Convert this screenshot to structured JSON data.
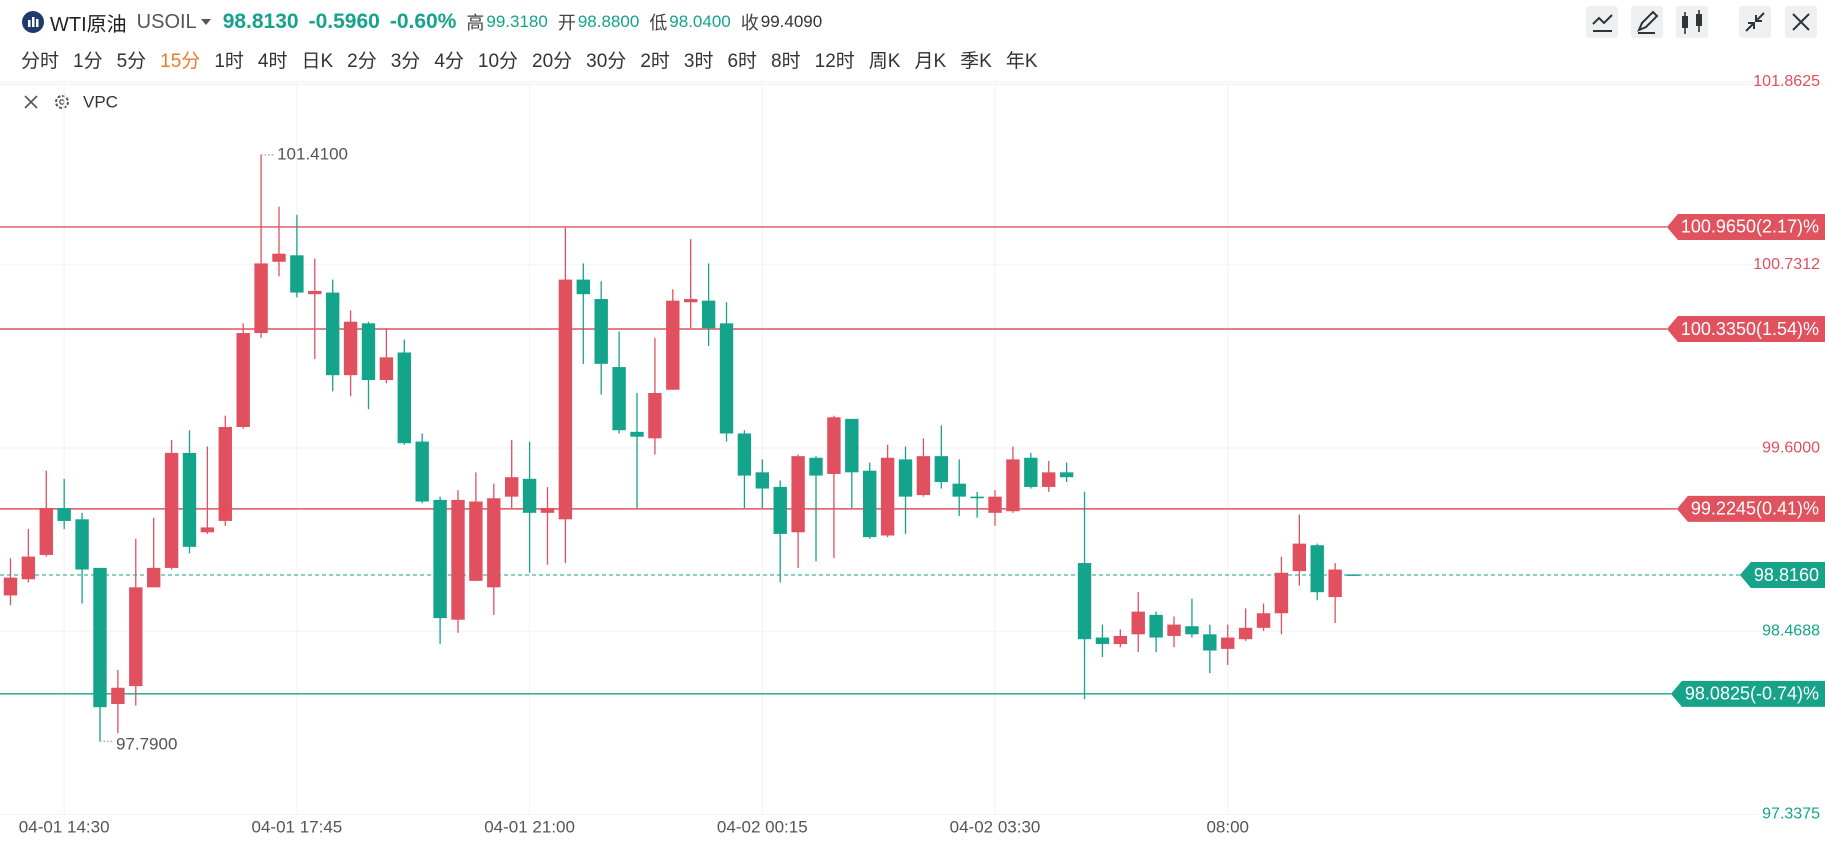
{
  "header": {
    "name": "WTI原油",
    "symbol": "USOIL",
    "price": "98.8130",
    "change": "-0.5960",
    "change_pct": "-0.60%",
    "high_label": "高",
    "high": "99.3180",
    "open_label": "开",
    "open": "98.8800",
    "low_label": "低",
    "low": "98.0400",
    "close_label": "收",
    "close": "99.4090"
  },
  "timeframes": [
    "分时",
    "1分",
    "5分",
    "15分",
    "1时",
    "4时",
    "日K",
    "2分",
    "3分",
    "4分",
    "10分",
    "20分",
    "30分",
    "2时",
    "3时",
    "6时",
    "8时",
    "12时",
    "周K",
    "月K",
    "季K",
    "年K"
  ],
  "active_timeframe": "15分",
  "indicator": "VPC",
  "chart_data": {
    "type": "candlestick",
    "categories": [
      null,
      null,
      null,
      "04-01 14:30",
      null,
      null,
      null,
      null,
      null,
      null,
      null,
      null,
      null,
      null,
      null,
      null,
      "04-01 17:45",
      null,
      null,
      null,
      null,
      null,
      null,
      null,
      null,
      null,
      null,
      null,
      null,
      "04-01 21:00",
      null,
      null,
      null,
      null,
      null,
      null,
      null,
      null,
      null,
      null,
      null,
      null,
      "04-02 00:15",
      null,
      null,
      null,
      null,
      null,
      null,
      null,
      null,
      null,
      null,
      null,
      null,
      "04-02 03:30",
      null,
      null,
      null,
      null,
      null,
      null,
      null,
      null,
      null,
      null,
      null,
      null,
      "08:00",
      null,
      null,
      null,
      null,
      null,
      null,
      null
    ],
    "open": [
      98.69,
      98.79,
      98.94,
      99.23,
      99.16,
      98.86,
      98.02,
      98.13,
      98.74,
      98.86,
      99.57,
      99.08,
      99.15,
      99.73,
      100.31,
      100.75,
      100.79,
      100.55,
      100.56,
      100.05,
      100.37,
      100.02,
      100.19,
      99.64,
      99.28,
      98.54,
      98.78,
      98.74,
      99.3,
      99.41,
      99.2,
      99.16,
      100.64,
      100.52,
      100.1,
      99.7,
      99.66,
      99.96,
      100.5,
      100.51,
      100.37,
      99.69,
      99.45,
      99.36,
      99.08,
      99.54,
      99.44,
      99.78,
      99.46,
      99.06,
      99.53,
      99.31,
      99.55,
      99.38,
      99.3,
      99.2,
      99.21,
      99.54,
      99.36,
      99.45,
      98.89,
      98.43,
      98.39,
      98.45,
      98.57,
      98.44,
      98.5,
      98.45,
      98.36,
      98.42,
      98.49,
      98.58,
      98.84,
      99.0,
      98.68,
      98.82
    ],
    "high": [
      98.92,
      99.1,
      99.46,
      99.41,
      99.2,
      98.86,
      98.23,
      99.04,
      99.17,
      99.65,
      99.71,
      99.61,
      99.8,
      100.37,
      101.41,
      101.09,
      101.04,
      100.77,
      100.64,
      100.45,
      100.38,
      100.34,
      100.27,
      99.69,
      99.3,
      99.34,
      99.45,
      99.38,
      99.65,
      99.64,
      99.36,
      100.96,
      100.74,
      100.63,
      100.32,
      99.94,
      100.28,
      100.58,
      100.89,
      100.74,
      100.5,
      99.71,
      99.53,
      99.4,
      99.56,
      99.55,
      99.8,
      99.78,
      99.51,
      99.62,
      99.61,
      99.66,
      99.74,
      99.53,
      99.33,
      99.34,
      99.61,
      99.57,
      99.52,
      99.51,
      99.33,
      98.51,
      98.48,
      98.71,
      98.59,
      98.56,
      98.67,
      98.51,
      98.51,
      98.61,
      98.64,
      98.93,
      99.19,
      99.01,
      98.89,
      98.82
    ],
    "low": [
      98.63,
      98.77,
      98.93,
      99.1,
      98.64,
      97.79,
      97.84,
      98.01,
      98.74,
      98.85,
      98.95,
      99.07,
      99.12,
      99.72,
      100.28,
      100.66,
      100.53,
      100.15,
      99.95,
      99.92,
      99.84,
      100.0,
      99.62,
      99.26,
      98.39,
      98.46,
      98.78,
      98.57,
      99.23,
      98.83,
      98.88,
      98.89,
      100.12,
      99.93,
      99.69,
      99.23,
      99.56,
      99.96,
      100.34,
      100.23,
      99.64,
      99.23,
      99.23,
      98.77,
      98.86,
      98.9,
      98.92,
      99.23,
      99.04,
      99.05,
      99.07,
      99.3,
      99.35,
      99.18,
      99.17,
      99.12,
      99.2,
      99.35,
      99.33,
      99.39,
      98.05,
      98.31,
      98.37,
      98.34,
      98.34,
      98.37,
      98.43,
      98.21,
      98.26,
      98.41,
      98.47,
      98.45,
      98.75,
      98.66,
      98.52,
      98.81
    ],
    "close": [
      98.8,
      98.93,
      99.23,
      99.15,
      98.85,
      98.0,
      98.12,
      98.74,
      98.86,
      99.57,
      98.99,
      99.11,
      99.73,
      100.31,
      100.74,
      100.8,
      100.56,
      100.57,
      100.05,
      100.38,
      100.02,
      100.16,
      99.63,
      99.27,
      98.55,
      99.28,
      99.27,
      99.29,
      99.42,
      99.2,
      99.23,
      100.64,
      100.55,
      100.12,
      99.71,
      99.67,
      99.94,
      100.51,
      100.52,
      100.34,
      99.69,
      99.43,
      99.35,
      99.07,
      99.55,
      99.43,
      99.79,
      99.45,
      99.05,
      99.54,
      99.3,
      99.55,
      99.39,
      99.3,
      99.29,
      99.3,
      99.53,
      99.36,
      99.45,
      99.42,
      98.42,
      98.39,
      98.44,
      98.59,
      98.43,
      98.51,
      98.45,
      98.35,
      98.43,
      98.49,
      98.58,
      98.83,
      99.01,
      98.71,
      98.85,
      98.816
    ],
    "up_color": "#e0505e",
    "down_color": "#14a38b",
    "ylim": [
      97.3375,
      101.8625
    ],
    "yticks": [
      97.3375,
      98.4688,
      {
        "value": 99.6,
        "label": "99.6000"
      },
      100.7312,
      101.8625
    ],
    "grid": true,
    "levels": [
      {
        "value": 100.965,
        "label": "100.9650(2.17)%",
        "color": "#e0525e"
      },
      {
        "value": 100.335,
        "label": "100.3350(1.54)%",
        "color": "#e0525e"
      },
      {
        "value": 99.2245,
        "label": "99.2245(0.41)%",
        "color": "#e0525e"
      },
      {
        "value": 98.0825,
        "label": "98.0825(-0.74)%",
        "color": "#16a38a"
      }
    ],
    "last_price": {
      "value": 98.816,
      "label": "98.8160",
      "color": "#16a38a"
    },
    "high_label": {
      "value": 101.41,
      "label": "101.4100"
    },
    "low_label": {
      "value": 97.79,
      "label": "97.7900"
    }
  }
}
